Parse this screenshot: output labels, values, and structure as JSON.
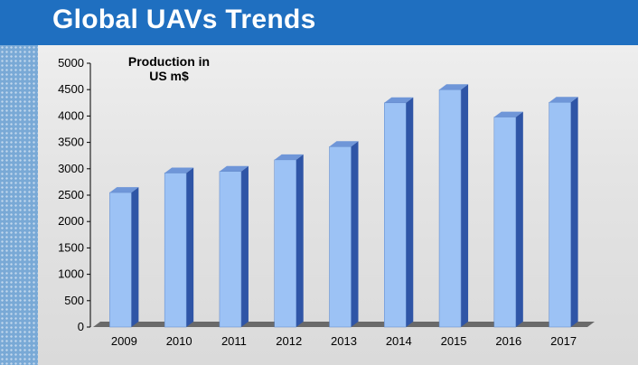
{
  "slide": {
    "title": "Global UAVs Trends"
  },
  "colors": {
    "header": "#1f6fc0",
    "bar_front": "#9cc2f5",
    "bar_side": "#2f55a6",
    "bar_top": "#6f96d8",
    "floor": "#6a6a6a"
  },
  "chart_data": {
    "type": "bar",
    "title": "",
    "xlabel": "",
    "ylabel": "",
    "annotation": [
      "Production in",
      "US m$"
    ],
    "categories": [
      "2009",
      "2010",
      "2011",
      "2012",
      "2013",
      "2014",
      "2015",
      "2016",
      "2017"
    ],
    "values": [
      2550,
      2920,
      2950,
      3170,
      3420,
      4250,
      4500,
      3980,
      4260
    ],
    "ylim": [
      0,
      5000
    ],
    "yticks": [
      0,
      500,
      1000,
      1500,
      2000,
      2500,
      3000,
      3500,
      4000,
      4500,
      5000
    ],
    "grid": false,
    "legend": "none",
    "style": "3d-column"
  }
}
